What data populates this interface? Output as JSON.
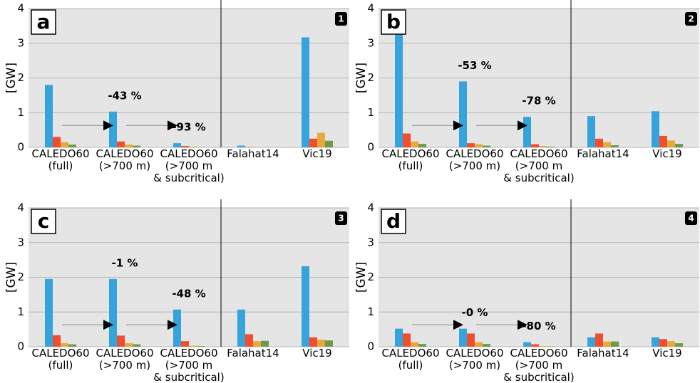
{
  "chart_data": [
    {
      "type": "bar",
      "panel_label": "a",
      "panel_number": "1",
      "ylabel": "[GW]",
      "categories": [
        "CALEDO60\n(full)",
        "CALEDO60\n(>700 m)",
        "CALEDO60\n(>700 m\n& subcritical)",
        "Falahat14",
        "Vic19"
      ],
      "series": [
        {
          "color": "#35a3dc",
          "values": [
            1.8,
            1.03,
            0.12,
            0.05,
            3.17
          ]
        },
        {
          "color": "#f04e2e",
          "values": [
            0.3,
            0.17,
            0.04,
            0.01,
            0.25
          ]
        },
        {
          "color": "#e8a93a",
          "values": [
            0.15,
            0.08,
            0.02,
            0.01,
            0.42
          ]
        },
        {
          "color": "#6e9a4a",
          "values": [
            0.08,
            0.05,
            0.01,
            0,
            0.19
          ]
        }
      ],
      "annotations": [
        "-43 %",
        "-93 %"
      ],
      "ylim": [
        0,
        4
      ],
      "yticks": [
        0,
        1,
        2,
        3,
        4
      ],
      "grid": true
    },
    {
      "type": "bar",
      "panel_label": "b",
      "panel_number": "2",
      "ylabel": "[GW]",
      "categories": [
        "CALEDO60\n(full)",
        "CALEDO60\n(>700 m)",
        "CALEDO60\n(>700 m\n& subcritical)",
        "Falahat14",
        "Vic19"
      ],
      "series": [
        {
          "color": "#35a3dc",
          "values": [
            3.9,
            1.9,
            0.88,
            0.9,
            1.04
          ]
        },
        {
          "color": "#f04e2e",
          "values": [
            0.4,
            0.12,
            0.09,
            0.25,
            0.33
          ]
        },
        {
          "color": "#e8a93a",
          "values": [
            0.17,
            0.09,
            0.04,
            0.15,
            0.2
          ]
        },
        {
          "color": "#6e9a4a",
          "values": [
            0.1,
            0.05,
            0.02,
            0.06,
            0.1
          ]
        }
      ],
      "annotations": [
        "-53 %",
        "-78 %"
      ],
      "ylim": [
        0,
        4
      ],
      "yticks": [
        0,
        1,
        2,
        3,
        4
      ],
      "grid": true
    },
    {
      "type": "bar",
      "panel_label": "c",
      "panel_number": "3",
      "ylabel": "[GW]",
      "categories": [
        "CALEDO60\n(full)",
        "CALEDO60\n(>700 m)",
        "CALEDO60\n(>700 m\n& subcritical)",
        "Falahat14",
        "Vic19"
      ],
      "series": [
        {
          "color": "#35a3dc",
          "values": [
            1.95,
            1.95,
            1.07,
            1.07,
            2.32
          ]
        },
        {
          "color": "#f04e2e",
          "values": [
            0.33,
            0.32,
            0.16,
            0.36,
            0.27
          ]
        },
        {
          "color": "#e8a93a",
          "values": [
            0.1,
            0.1,
            0.03,
            0.16,
            0.2
          ]
        },
        {
          "color": "#6e9a4a",
          "values": [
            0.07,
            0.07,
            0.02,
            0.17,
            0.18
          ]
        }
      ],
      "annotations": [
        "-1 %",
        "-48 %"
      ],
      "ylim": [
        0,
        4
      ],
      "yticks": [
        0,
        1,
        2,
        3,
        4
      ],
      "grid": true
    },
    {
      "type": "bar",
      "panel_label": "d",
      "panel_number": "4",
      "ylabel": "[GW]",
      "categories": [
        "CALEDO60\n(full)",
        "CALEDO60\n(>700 m)",
        "CALEDO60\n(>700 m\n& subcritical)",
        "Falahat14",
        "Vic19"
      ],
      "series": [
        {
          "color": "#35a3dc",
          "values": [
            0.52,
            0.52,
            0.13,
            0.27,
            0.27
          ]
        },
        {
          "color": "#f04e2e",
          "values": [
            0.38,
            0.38,
            0.07,
            0.38,
            0.22
          ]
        },
        {
          "color": "#e8a93a",
          "values": [
            0.13,
            0.13,
            0.02,
            0.15,
            0.16
          ]
        },
        {
          "color": "#6e9a4a",
          "values": [
            0.08,
            0.08,
            0.01,
            0.15,
            0.1
          ]
        }
      ],
      "annotations": [
        "-0 %",
        "-80 %"
      ],
      "ylim": [
        0,
        4
      ],
      "yticks": [
        0,
        1,
        2,
        3,
        4
      ],
      "grid": true
    }
  ]
}
